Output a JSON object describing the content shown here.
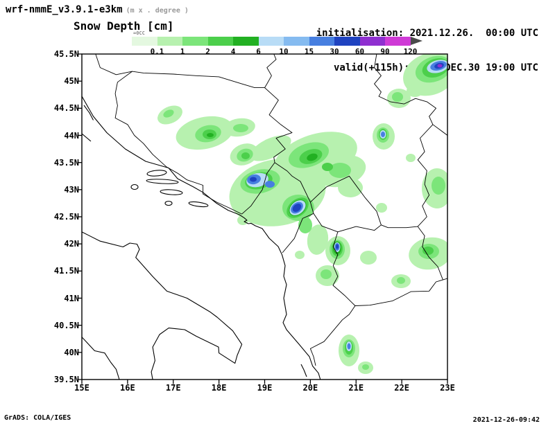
{
  "header": {
    "model_title": "wrf-nmmE_v3.9.1-e3km",
    "model_subtitle": "(m x . degree )",
    "field_title": "Snow Depth [cm]",
    "init_label": "initialisation: 2021.12.26.  00:00 UTC",
    "valid_label": "valid(+115h): 2021.DEC.30 19:00 UTC"
  },
  "footer": {
    "left": "GrADS: COLA/IGES",
    "right": "2021-12-26-09:42"
  },
  "colorbar": {
    "tiny_label": "=0CC",
    "tick_labels": [
      "0.1",
      "1",
      "2",
      "4",
      "6",
      "10",
      "15",
      "30",
      "60",
      "90",
      "120"
    ],
    "colors": [
      "#e4f8e0",
      "#b7f1af",
      "#7ce57a",
      "#4ccf4b",
      "#22b022",
      "#b8dcf6",
      "#85bbf0",
      "#477fe0",
      "#1f43c0",
      "#8f2fd0",
      "#cf3ad6"
    ],
    "arrow_color": "#4a4a4a"
  },
  "axes": {
    "y_ticks": [
      "45.5N",
      "45N",
      "44.5N",
      "44N",
      "43.5N",
      "43N",
      "42.5N",
      "42N",
      "41.5N",
      "41N",
      "40.5N",
      "40N",
      "39.5N"
    ],
    "x_ticks": [
      "15E",
      "16E",
      "17E",
      "18E",
      "19E",
      "20E",
      "21E",
      "22E",
      "23E"
    ]
  },
  "chart_data": {
    "type": "heatmap",
    "title": "Snow Depth [cm]",
    "model": "wrf-nmmE_v3.9.1-e3km",
    "initialisation": "2021.12.26. 00:00 UTC",
    "valid": "(+115h) 2021.DEC.30 19:00 UTC",
    "projection": "lat-lon",
    "lon_range_deg_east": [
      15,
      23
    ],
    "lat_range_deg_north": [
      39.5,
      45.5
    ],
    "x_tick_labels": [
      "15E",
      "16E",
      "17E",
      "18E",
      "19E",
      "20E",
      "21E",
      "22E",
      "23E"
    ],
    "y_tick_labels": [
      "39.5N",
      "40N",
      "40.5N",
      "41N",
      "41.5N",
      "42N",
      "42.5N",
      "43N",
      "43.5N",
      "44N",
      "44.5N",
      "45N",
      "45.5N"
    ],
    "shade_levels_cm": [
      0.1,
      1,
      2,
      4,
      6,
      10,
      15,
      30,
      60,
      90,
      120
    ],
    "shade_colors": [
      "#e4f8e0",
      "#b7f1af",
      "#7ce57a",
      "#4ccf4b",
      "#22b022",
      "#b8dcf6",
      "#85bbf0",
      "#477fe0",
      "#1f43c0",
      "#8f2fd0",
      "#cf3ad6"
    ],
    "grid": false,
    "legend_position": "top",
    "snow_maxima": [
      {
        "lon": 22.8,
        "lat": 45.25,
        "approx_max_cm": 90
      },
      {
        "lon": 22.0,
        "lat": 44.7,
        "approx_max_cm": 2
      },
      {
        "lon": 21.5,
        "lat": 44.0,
        "approx_max_cm": 15
      },
      {
        "lon": 17.8,
        "lat": 44.0,
        "approx_max_cm": 4
      },
      {
        "lon": 18.9,
        "lat": 43.3,
        "approx_max_cm": 30
      },
      {
        "lon": 20.0,
        "lat": 43.6,
        "approx_max_cm": 6
      },
      {
        "lon": 19.7,
        "lat": 42.7,
        "approx_max_cm": 60
      },
      {
        "lon": 20.6,
        "lat": 41.9,
        "approx_max_cm": 30
      },
      {
        "lon": 22.8,
        "lat": 43.1,
        "approx_max_cm": 2
      },
      {
        "lon": 22.6,
        "lat": 41.8,
        "approx_max_cm": 4
      },
      {
        "lon": 20.9,
        "lat": 40.1,
        "approx_max_cm": 15
      },
      {
        "lon": 21.2,
        "lat": 39.8,
        "approx_max_cm": 2
      }
    ]
  }
}
